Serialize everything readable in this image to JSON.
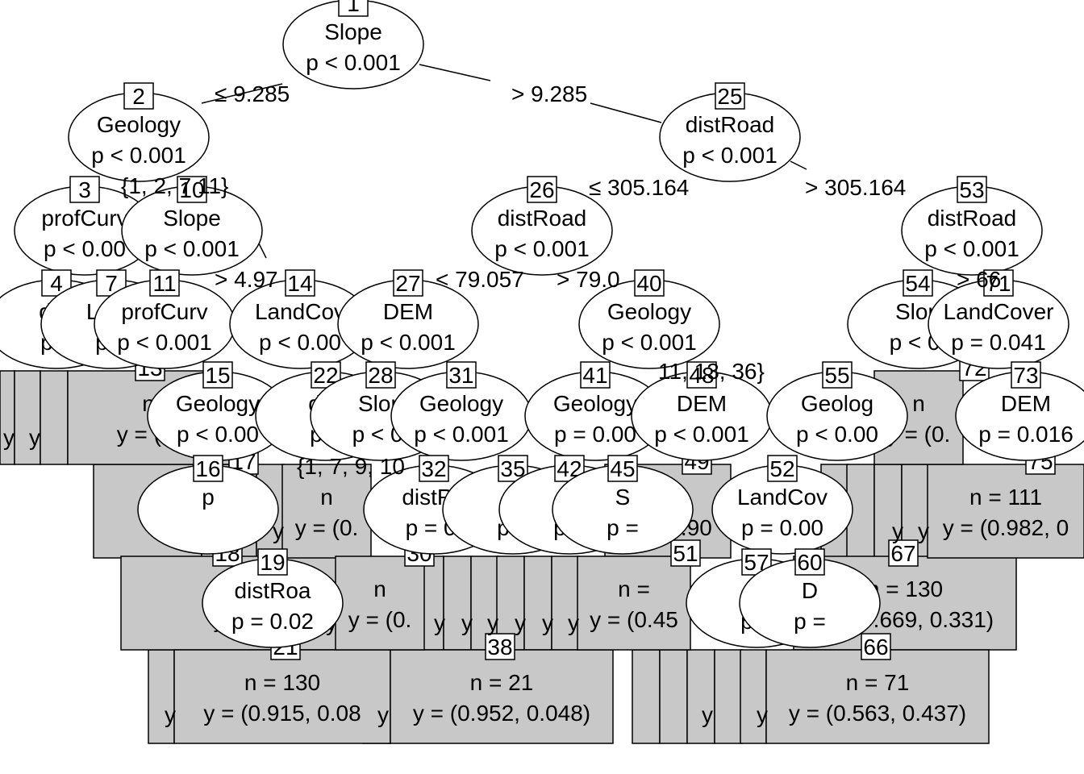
{
  "nodes": [
    {
      "id": "1",
      "var": "Slope",
      "p": "p < 0.001"
    },
    {
      "id": "2",
      "var": "Geology",
      "p": "p < 0.001"
    },
    {
      "id": "25",
      "var": "distRoad",
      "p": "p < 0.001"
    },
    {
      "id": "3",
      "var": "profCurv",
      "p": "p < 0.00"
    },
    {
      "id": "10",
      "var": "Slope",
      "p": "p < 0.001"
    },
    {
      "id": "26",
      "var": "distRoad",
      "p": "p < 0.001"
    },
    {
      "id": "53",
      "var": "distRoad",
      "p": "p < 0.001"
    },
    {
      "id": "4",
      "var": "dist",
      "p": "p ="
    },
    {
      "id": "7",
      "var": "Land",
      "p": "p <"
    },
    {
      "id": "11",
      "var": "profCurv",
      "p": "p < 0.001"
    },
    {
      "id": "14",
      "var": "LandCov",
      "p": "p < 0.00"
    },
    {
      "id": "27",
      "var": "DEM",
      "p": "p < 0.001"
    },
    {
      "id": "40",
      "var": "Geology",
      "p": "p < 0.001"
    },
    {
      "id": "54",
      "var": "Slop",
      "p": "p < 0."
    },
    {
      "id": "71",
      "var": "LandCover",
      "p": "p = 0.041"
    },
    {
      "id": "15",
      "var": "Geology",
      "p": "p < 0.00"
    },
    {
      "id": "22",
      "var": "dist",
      "p": "p ="
    },
    {
      "id": "28",
      "var": "Slop",
      "p": "p < 0."
    },
    {
      "id": "31",
      "var": "Geology",
      "p": "p < 0.001"
    },
    {
      "id": "41",
      "var": "Geology",
      "p": "p = 0.00"
    },
    {
      "id": "48",
      "var": "DEM",
      "p": "p < 0.001"
    },
    {
      "id": "55",
      "var": "Geolog",
      "p": "p < 0.00"
    },
    {
      "id": "73",
      "var": "DEM",
      "p": "p = 0.016"
    },
    {
      "id": "16",
      "var": "p",
      "p": ""
    },
    {
      "id": "32",
      "var": "distRo",
      "p": "p = 0."
    },
    {
      "id": "35",
      "var": "Sl",
      "p": "p ="
    },
    {
      "id": "42",
      "var": "T",
      "p": "p <"
    },
    {
      "id": "45",
      "var": "S",
      "p": "p ="
    },
    {
      "id": "52",
      "var": "LandCov",
      "p": "p = 0.00"
    },
    {
      "id": "19",
      "var": "distRoa",
      "p": "p = 0.02"
    },
    {
      "id": "57",
      "var": "Sl",
      "p": "p ="
    },
    {
      "id": "60",
      "var": "D",
      "p": "p ="
    }
  ],
  "leaves": [
    {
      "id": "18",
      "n": "n",
      "y": "y = (0"
    },
    {
      "id": "21",
      "n": "n = 130",
      "y": "y = (0.915, 0.08"
    },
    {
      "id": "38",
      "n": "n = 21",
      "y": "y = (0.952, 0.048)"
    },
    {
      "id": "67",
      "n": "n = 130",
      "y": "y = (0.669, 0.331)"
    },
    {
      "id": "66",
      "n": "n = 71",
      "y": "y = (0.563, 0.437)"
    },
    {
      "id": "75",
      "n": "n = 111",
      "y": "y = (0.982, 0"
    },
    {
      "id": "72",
      "n": "n",
      "y": "y = (0."
    },
    {
      "id": "13",
      "n": "n",
      "y": "y = (0."
    },
    {
      "id": "17",
      "n": "n",
      "y": "y = (0."
    },
    {
      "id": "30",
      "n": "n",
      "y": "y = (0."
    },
    {
      "id": "49",
      "n": "n =",
      "y": "y = (0.90"
    },
    {
      "id": "51",
      "n": "n =",
      "y": "y = (0.45"
    }
  ],
  "edges": [
    {
      "label": "≤ 9.285"
    },
    {
      "label": "> 9.285"
    },
    {
      "label": "≤ 305.164"
    },
    {
      "label": "> 305.164"
    },
    {
      "label": "< 79.057"
    },
    {
      "label": "> 79.0"
    },
    {
      "label": "> 4.97"
    },
    {
      "label": "{1, 2, 7 11}"
    },
    {
      "label": "> 66"
    },
    {
      "label": "{1, 7, 9, 10"
    },
    {
      "label": "11, 13, 36}"
    }
  ],
  "fragments": [
    "y",
    "y",
    "y",
    "y",
    "y",
    "y",
    "y",
    "y",
    "y",
    "y",
    "y",
    "y",
    "y",
    "y",
    "y",
    "y",
    "y",
    "y",
    "y",
    "y",
    "y",
    "y",
    "y",
    "y",
    "y",
    "y",
    "y",
    "y",
    "y",
    "y",
    "y",
    "y",
    "y"
  ]
}
